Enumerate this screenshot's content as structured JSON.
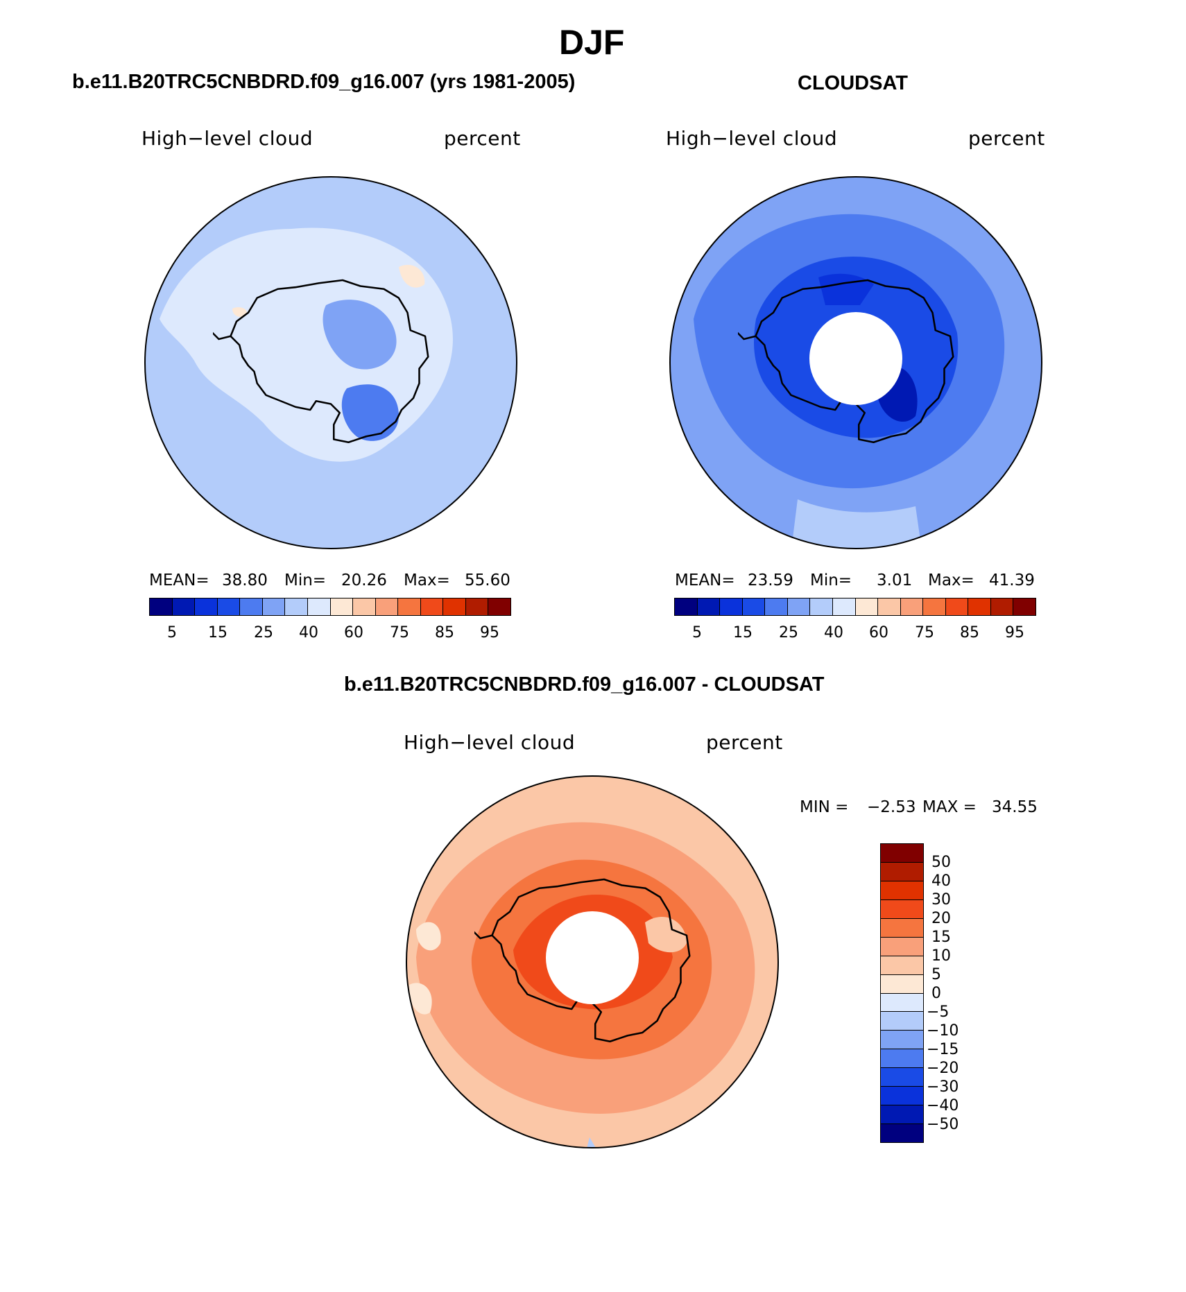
{
  "figure": {
    "season_title": "DJF",
    "left_panel": {
      "case_title": "b.e11.B20TRC5CNBDRD.f09_g16.007 (yrs 1981-2005)",
      "variable": "High−level cloud",
      "units": "percent",
      "stats": {
        "mean_label": "MEAN=",
        "mean": "38.80",
        "min_label": "Min=",
        "min": "20.26",
        "max_label": "Max=",
        "max": "55.60"
      },
      "colorbar_labels": [
        "5",
        "15",
        "25",
        "40",
        "60",
        "75",
        "85",
        "95"
      ]
    },
    "right_panel": {
      "case_title": "CLOUDSAT",
      "variable": "High−level cloud",
      "units": "percent",
      "stats": {
        "mean_label": "MEAN=",
        "mean": "23.59",
        "min_label": "Min=",
        "min": "3.01",
        "max_label": "Max=",
        "max": "41.39"
      },
      "colorbar_labels": [
        "5",
        "15",
        "25",
        "40",
        "60",
        "75",
        "85",
        "95"
      ]
    },
    "diff_panel": {
      "case_title": "b.e11.B20TRC5CNBDRD.f09_g16.007 - CLOUDSAT",
      "variable": "High−level cloud",
      "units": "percent",
      "minmax": {
        "min_label": "MIN =",
        "min": "−2.53",
        "max_label": "MAX =",
        "max": "34.55"
      },
      "colorbar_labels": [
        "50",
        "40",
        "30",
        "20",
        "15",
        "10",
        "5",
        "0",
        "−5",
        "−10",
        "−15",
        "−20",
        "−30",
        "−40",
        "−50"
      ]
    }
  },
  "colors": {
    "abs_palette": [
      "#00007f",
      "#0019b3",
      "#0a32db",
      "#1a4be6",
      "#4d7bf0",
      "#7fa3f5",
      "#b3ccfa",
      "#dde9fd",
      "#fde8d5",
      "#fbc7a7",
      "#f9a07a",
      "#f5753f",
      "#f04a1a",
      "#e03200",
      "#b01c00",
      "#800000"
    ],
    "diff_palette": [
      "#800000",
      "#b01c00",
      "#e03200",
      "#f04a1a",
      "#f5753f",
      "#f9a07a",
      "#fbc7a7",
      "#fde8d5",
      "#dde9fd",
      "#b3ccfa",
      "#7fa3f5",
      "#4d7bf0",
      "#1a4be6",
      "#0a32db",
      "#0019b3",
      "#00007f"
    ],
    "model_base": "#b3ccfa",
    "obs_base": "#4d7bf0",
    "diff_base": "#fbc7a7"
  }
}
